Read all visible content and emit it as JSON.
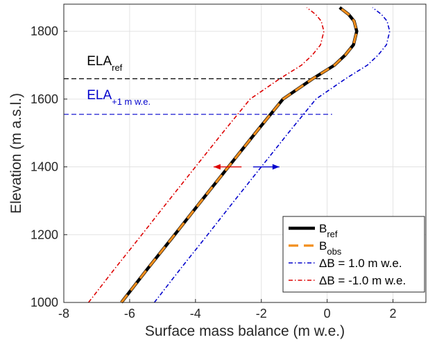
{
  "chart_data": {
    "type": "line",
    "title": "",
    "xlabel": "Surface mass balance (m w.e.)",
    "ylabel": "Elevation (m a.s.l.)",
    "xlim": [
      -8,
      3
    ],
    "ylim": [
      1000,
      1880
    ],
    "xticks": [
      -8,
      -6,
      -4,
      -2,
      0,
      2
    ],
    "yticks": [
      1000,
      1200,
      1400,
      1600,
      1800
    ],
    "grid": true,
    "legend_position": "bottom-right",
    "series": [
      {
        "key": "ref",
        "name": "B",
        "name_sub": "ref",
        "color": "#000000",
        "style": "solid",
        "points": [
          [
            -6.25,
            1000
          ],
          [
            -5.45,
            1100
          ],
          [
            -4.63,
            1200
          ],
          [
            -3.82,
            1300
          ],
          [
            -3.0,
            1400
          ],
          [
            -2.18,
            1500
          ],
          [
            -1.34,
            1600
          ],
          [
            -0.44,
            1660
          ],
          [
            0.22,
            1700
          ],
          [
            0.55,
            1730
          ],
          [
            0.8,
            1760
          ],
          [
            0.9,
            1800
          ],
          [
            0.82,
            1830
          ],
          [
            0.65,
            1850
          ],
          [
            0.38,
            1870
          ]
        ]
      },
      {
        "key": "obs",
        "name": "B",
        "name_sub": "obs",
        "color": "#f28e1c",
        "style": "dashed",
        "points": [
          [
            -6.25,
            1000
          ],
          [
            -5.45,
            1100
          ],
          [
            -4.63,
            1200
          ],
          [
            -3.82,
            1300
          ],
          [
            -3.0,
            1400
          ],
          [
            -2.18,
            1500
          ],
          [
            -1.34,
            1600
          ],
          [
            -0.44,
            1660
          ],
          [
            0.22,
            1700
          ],
          [
            0.55,
            1730
          ],
          [
            0.8,
            1760
          ],
          [
            0.9,
            1800
          ],
          [
            0.82,
            1830
          ],
          [
            0.65,
            1850
          ],
          [
            0.38,
            1870
          ]
        ]
      },
      {
        "key": "plus",
        "name": "ΔB = 1.0 m w.e.",
        "color": "#0000cc",
        "style": "dashdot",
        "points": [
          [
            -5.25,
            1000
          ],
          [
            -4.45,
            1100
          ],
          [
            -3.63,
            1200
          ],
          [
            -2.82,
            1300
          ],
          [
            -2.0,
            1400
          ],
          [
            -1.18,
            1500
          ],
          [
            -0.34,
            1600
          ],
          [
            0.56,
            1660
          ],
          [
            1.22,
            1700
          ],
          [
            1.55,
            1730
          ],
          [
            1.8,
            1760
          ],
          [
            1.9,
            1800
          ],
          [
            1.82,
            1830
          ],
          [
            1.65,
            1850
          ],
          [
            1.38,
            1870
          ]
        ]
      },
      {
        "key": "minus",
        "name": "ΔB = -1.0 m w.e.",
        "color": "#dd0000",
        "style": "dashdot",
        "points": [
          [
            -7.25,
            1000
          ],
          [
            -6.45,
            1100
          ],
          [
            -5.63,
            1200
          ],
          [
            -4.82,
            1300
          ],
          [
            -4.0,
            1400
          ],
          [
            -3.18,
            1500
          ],
          [
            -2.34,
            1600
          ],
          [
            -1.44,
            1660
          ],
          [
            -0.78,
            1700
          ],
          [
            -0.45,
            1730
          ],
          [
            -0.2,
            1760
          ],
          [
            -0.1,
            1800
          ],
          [
            -0.18,
            1830
          ],
          [
            -0.35,
            1850
          ],
          [
            -0.62,
            1870
          ]
        ]
      }
    ],
    "ela_lines": [
      {
        "key": "ref",
        "label": "ELA",
        "label_sub": "ref",
        "elevation": 1660,
        "x_end": 0.15,
        "color": "#000000",
        "label_x": -7.3,
        "label_y": 1700
      },
      {
        "key": "plus",
        "label": "ELA",
        "label_sub": "+1 m w.e.",
        "elevation": 1555,
        "x_end": 0.15,
        "color": "#0000cc",
        "label_x": -7.3,
        "label_y": 1600
      }
    ],
    "arrows": [
      {
        "key": "left",
        "color": "#dd0000",
        "from": [
          -2.6,
          1400
        ],
        "to": [
          -3.45,
          1400
        ]
      },
      {
        "key": "right",
        "color": "#0000cc",
        "from": [
          -2.25,
          1400
        ],
        "to": [
          -1.45,
          1400
        ]
      }
    ]
  }
}
